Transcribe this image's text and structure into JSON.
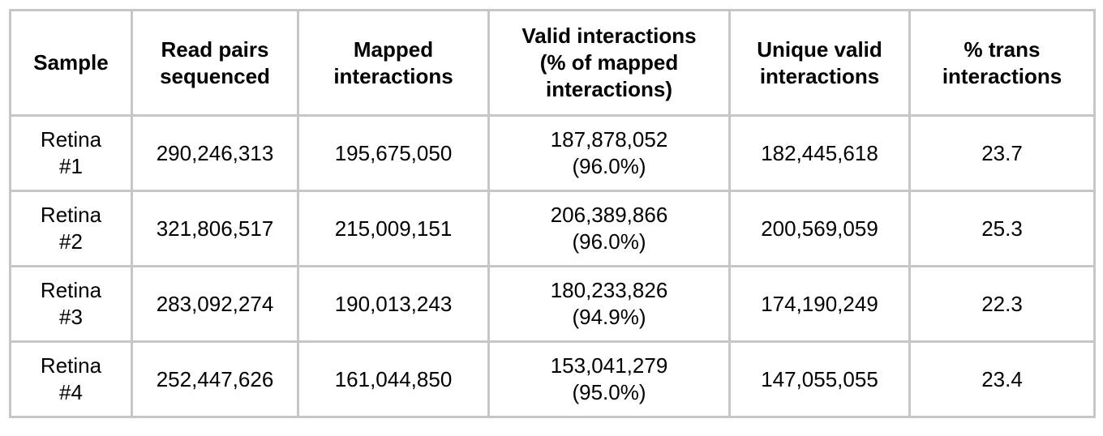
{
  "table": {
    "header": [
      "Sample",
      "Read pairs sequenced",
      "Mapped interactions",
      "Valid interactions (% of mapped interactions)",
      "Unique valid interactions",
      "% trans interactions"
    ],
    "rows": [
      [
        "Retina #1",
        "290,246,313",
        "195,675,050",
        [
          "187,878,052",
          "(96.0%)"
        ],
        "182,445,618",
        "23.7"
      ],
      [
        "Retina #2",
        "321,806,517",
        "215,009,151",
        [
          "206,389,866",
          "(96.0%)"
        ],
        "200,569,059",
        "25.3"
      ],
      [
        "Retina #3",
        "283,092,274",
        "190,013,243",
        [
          "180,233,826",
          "(94.9%)"
        ],
        "174,190,249",
        "22.3"
      ],
      [
        "Retina #4",
        "252,447,626",
        "161,044,850",
        [
          "153,041,279",
          "(95.0%)"
        ],
        "147,055,055",
        "23.4"
      ]
    ]
  }
}
